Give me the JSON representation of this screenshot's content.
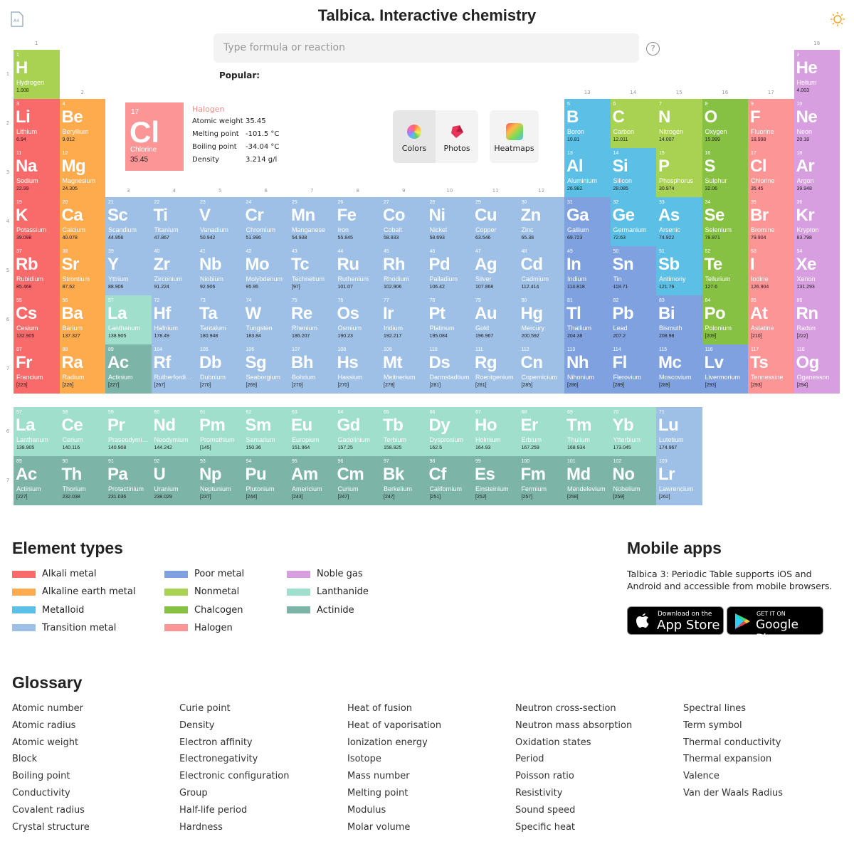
{
  "header": {
    "doc_icon": "A4",
    "title": "Talbica. Interactive chemistry",
    "search_placeholder": "Type formula or reaction",
    "help": "?",
    "popular": "Popular:"
  },
  "groups": [
    1,
    2,
    3,
    4,
    5,
    6,
    7,
    8,
    9,
    10,
    11,
    12,
    13,
    14,
    15,
    16,
    17,
    18
  ],
  "periods": [
    1,
    2,
    3,
    4,
    5,
    6,
    7
  ],
  "types": [
    {
      "name": "Alkali metal",
      "color": "#f96b6b"
    },
    {
      "name": "Alkaline earth metal",
      "color": "#fdab4c"
    },
    {
      "name": "Metalloid",
      "color": "#5cbfe6"
    },
    {
      "name": "Transition metal",
      "color": "#9ec0e6"
    },
    {
      "name": "Poor metal",
      "color": "#7fa1e0"
    },
    {
      "name": "Nonmetal",
      "color": "#a9d152"
    },
    {
      "name": "Chalcogen",
      "color": "#86c143"
    },
    {
      "name": "Halogen",
      "color": "#fc9696"
    },
    {
      "name": "Noble gas",
      "color": "#d89fe0"
    },
    {
      "name": "Lanthanide",
      "color": "#9fdfcb"
    },
    {
      "name": "Actinide",
      "color": "#7db4a8"
    }
  ],
  "elements": [
    {
      "n": 1,
      "s": "H",
      "name": "Hydrogen",
      "w": "1.008",
      "t": "Nonmetal"
    },
    {
      "n": 2,
      "s": "He",
      "name": "Helium",
      "w": "4.003",
      "t": "Noble gas"
    },
    {
      "n": 3,
      "s": "Li",
      "name": "Lithium",
      "w": "6.94",
      "t": "Alkali metal"
    },
    {
      "n": 4,
      "s": "Be",
      "name": "Beryllium",
      "w": "9.012",
      "t": "Alkaline earth metal"
    },
    {
      "n": 5,
      "s": "B",
      "name": "Boron",
      "w": "10.81",
      "t": "Metalloid"
    },
    {
      "n": 6,
      "s": "C",
      "name": "Carbon",
      "w": "12.011",
      "t": "Nonmetal"
    },
    {
      "n": 7,
      "s": "N",
      "name": "Nitrogen",
      "w": "14.007",
      "t": "Nonmetal"
    },
    {
      "n": 8,
      "s": "O",
      "name": "Oxygen",
      "w": "15.999",
      "t": "Chalcogen"
    },
    {
      "n": 9,
      "s": "F",
      "name": "Fluorine",
      "w": "18.998",
      "t": "Halogen"
    },
    {
      "n": 10,
      "s": "Ne",
      "name": "Neon",
      "w": "20.18",
      "t": "Noble gas"
    },
    {
      "n": 11,
      "s": "Na",
      "name": "Sodium",
      "w": "22.99",
      "t": "Alkali metal"
    },
    {
      "n": 12,
      "s": "Mg",
      "name": "Magnesium",
      "w": "24.305",
      "t": "Alkaline earth metal"
    },
    {
      "n": 13,
      "s": "Al",
      "name": "Aluminium",
      "w": "26.982",
      "t": "Metalloid"
    },
    {
      "n": 14,
      "s": "Si",
      "name": "Silicon",
      "w": "28.085",
      "t": "Metalloid"
    },
    {
      "n": 15,
      "s": "P",
      "name": "Phosphorus",
      "w": "30.974",
      "t": "Nonmetal"
    },
    {
      "n": 16,
      "s": "S",
      "name": "Sulphur",
      "w": "32.06",
      "t": "Chalcogen"
    },
    {
      "n": 17,
      "s": "Cl",
      "name": "Chlorine",
      "w": "35.45",
      "t": "Halogen"
    },
    {
      "n": 18,
      "s": "Ar",
      "name": "Argon",
      "w": "39.948",
      "t": "Noble gas"
    },
    {
      "n": 19,
      "s": "K",
      "name": "Potassium",
      "w": "39.098",
      "t": "Alkali metal"
    },
    {
      "n": 20,
      "s": "Ca",
      "name": "Calcium",
      "w": "40.078",
      "t": "Alkaline earth metal"
    },
    {
      "n": 21,
      "s": "Sc",
      "name": "Scandium",
      "w": "44.956",
      "t": "Transition metal"
    },
    {
      "n": 22,
      "s": "Ti",
      "name": "Titanium",
      "w": "47.867",
      "t": "Transition metal"
    },
    {
      "n": 23,
      "s": "V",
      "name": "Vanadium",
      "w": "50.942",
      "t": "Transition metal"
    },
    {
      "n": 24,
      "s": "Cr",
      "name": "Chromium",
      "w": "51.996",
      "t": "Transition metal"
    },
    {
      "n": 25,
      "s": "Mn",
      "name": "Manganese",
      "w": "54.938",
      "t": "Transition metal"
    },
    {
      "n": 26,
      "s": "Fe",
      "name": "Iron",
      "w": "55.845",
      "t": "Transition metal"
    },
    {
      "n": 27,
      "s": "Co",
      "name": "Cobalt",
      "w": "58.933",
      "t": "Transition metal"
    },
    {
      "n": 28,
      "s": "Ni",
      "name": "Nickel",
      "w": "58.693",
      "t": "Transition metal"
    },
    {
      "n": 29,
      "s": "Cu",
      "name": "Copper",
      "w": "63.546",
      "t": "Transition metal"
    },
    {
      "n": 30,
      "s": "Zn",
      "name": "Zinc",
      "w": "65.38",
      "t": "Transition metal"
    },
    {
      "n": 31,
      "s": "Ga",
      "name": "Gallium",
      "w": "69.723",
      "t": "Poor metal"
    },
    {
      "n": 32,
      "s": "Ge",
      "name": "Germanium",
      "w": "72.63",
      "t": "Metalloid"
    },
    {
      "n": 33,
      "s": "As",
      "name": "Arsenic",
      "w": "74.922",
      "t": "Metalloid"
    },
    {
      "n": 34,
      "s": "Se",
      "name": "Selenium",
      "w": "78.971",
      "t": "Chalcogen"
    },
    {
      "n": 35,
      "s": "Br",
      "name": "Bromine",
      "w": "79.904",
      "t": "Halogen"
    },
    {
      "n": 36,
      "s": "Kr",
      "name": "Krypton",
      "w": "83.798",
      "t": "Noble gas"
    },
    {
      "n": 37,
      "s": "Rb",
      "name": "Rubidium",
      "w": "85.468",
      "t": "Alkali metal"
    },
    {
      "n": 38,
      "s": "Sr",
      "name": "Strontium",
      "w": "87.62",
      "t": "Alkaline earth metal"
    },
    {
      "n": 39,
      "s": "Y",
      "name": "Yttrium",
      "w": "88.906",
      "t": "Transition metal"
    },
    {
      "n": 40,
      "s": "Zr",
      "name": "Zirconium",
      "w": "91.224",
      "t": "Transition metal"
    },
    {
      "n": 41,
      "s": "Nb",
      "name": "Niobium",
      "w": "92.906",
      "t": "Transition metal"
    },
    {
      "n": 42,
      "s": "Mo",
      "name": "Molybdenum",
      "w": "95.95",
      "t": "Transition metal"
    },
    {
      "n": 43,
      "s": "Tc",
      "name": "Technetium",
      "w": "[97]",
      "t": "Transition metal"
    },
    {
      "n": 44,
      "s": "Ru",
      "name": "Ruthenium",
      "w": "101.07",
      "t": "Transition metal"
    },
    {
      "n": 45,
      "s": "Rh",
      "name": "Rhodium",
      "w": "102.906",
      "t": "Transition metal"
    },
    {
      "n": 46,
      "s": "Pd",
      "name": "Palladium",
      "w": "106.42",
      "t": "Transition metal"
    },
    {
      "n": 47,
      "s": "Ag",
      "name": "Silver",
      "w": "107.868",
      "t": "Transition metal"
    },
    {
      "n": 48,
      "s": "Cd",
      "name": "Cadmium",
      "w": "112.414",
      "t": "Transition metal"
    },
    {
      "n": 49,
      "s": "In",
      "name": "Indium",
      "w": "114.818",
      "t": "Poor metal"
    },
    {
      "n": 50,
      "s": "Sn",
      "name": "Tin",
      "w": "118.71",
      "t": "Poor metal"
    },
    {
      "n": 51,
      "s": "Sb",
      "name": "Antimony",
      "w": "121.76",
      "t": "Metalloid"
    },
    {
      "n": 52,
      "s": "Te",
      "name": "Tellurium",
      "w": "127.6",
      "t": "Chalcogen"
    },
    {
      "n": 53,
      "s": "I",
      "name": "Iodine",
      "w": "126.904",
      "t": "Halogen"
    },
    {
      "n": 54,
      "s": "Xe",
      "name": "Xenon",
      "w": "131.293",
      "t": "Noble gas"
    },
    {
      "n": 55,
      "s": "Cs",
      "name": "Cesium",
      "w": "132.905",
      "t": "Alkali metal"
    },
    {
      "n": 56,
      "s": "Ba",
      "name": "Barium",
      "w": "137.327",
      "t": "Alkaline earth metal"
    },
    {
      "n": 57,
      "s": "La",
      "name": "Lanthanum",
      "w": "138.905",
      "t": "Lanthanide"
    },
    {
      "n": 58,
      "s": "Ce",
      "name": "Cerium",
      "w": "140.116",
      "t": "Lanthanide"
    },
    {
      "n": 59,
      "s": "Pr",
      "name": "Praseodymium",
      "w": "140.908",
      "t": "Lanthanide"
    },
    {
      "n": 60,
      "s": "Nd",
      "name": "Neodymium",
      "w": "144.242",
      "t": "Lanthanide"
    },
    {
      "n": 61,
      "s": "Pm",
      "name": "Promethium",
      "w": "[145]",
      "t": "Lanthanide"
    },
    {
      "n": 62,
      "s": "Sm",
      "name": "Samarium",
      "w": "150.36",
      "t": "Lanthanide"
    },
    {
      "n": 63,
      "s": "Eu",
      "name": "Europium",
      "w": "151.964",
      "t": "Lanthanide"
    },
    {
      "n": 64,
      "s": "Gd",
      "name": "Gadolinium",
      "w": "157.25",
      "t": "Lanthanide"
    },
    {
      "n": 65,
      "s": "Tb",
      "name": "Terbium",
      "w": "158.925",
      "t": "Lanthanide"
    },
    {
      "n": 66,
      "s": "Dy",
      "name": "Dysprosium",
      "w": "162.5",
      "t": "Lanthanide"
    },
    {
      "n": 67,
      "s": "Ho",
      "name": "Holmium",
      "w": "164.93",
      "t": "Lanthanide"
    },
    {
      "n": 68,
      "s": "Er",
      "name": "Erbium",
      "w": "167.259",
      "t": "Lanthanide"
    },
    {
      "n": 69,
      "s": "Tm",
      "name": "Thulium",
      "w": "168.934",
      "t": "Lanthanide"
    },
    {
      "n": 70,
      "s": "Yb",
      "name": "Ytterbium",
      "w": "173.045",
      "t": "Lanthanide"
    },
    {
      "n": 71,
      "s": "Lu",
      "name": "Lutetium",
      "w": "174.967",
      "t": "Transition metal"
    },
    {
      "n": 72,
      "s": "Hf",
      "name": "Hafnium",
      "w": "178.49",
      "t": "Transition metal"
    },
    {
      "n": 73,
      "s": "Ta",
      "name": "Tantalum",
      "w": "180.948",
      "t": "Transition metal"
    },
    {
      "n": 74,
      "s": "W",
      "name": "Tungsten",
      "w": "183.84",
      "t": "Transition metal"
    },
    {
      "n": 75,
      "s": "Re",
      "name": "Rhenium",
      "w": "186.207",
      "t": "Transition metal"
    },
    {
      "n": 76,
      "s": "Os",
      "name": "Osmium",
      "w": "190.23",
      "t": "Transition metal"
    },
    {
      "n": 77,
      "s": "Ir",
      "name": "Iridium",
      "w": "192.217",
      "t": "Transition metal"
    },
    {
      "n": 78,
      "s": "Pt",
      "name": "Platinum",
      "w": "195.084",
      "t": "Transition metal"
    },
    {
      "n": 79,
      "s": "Au",
      "name": "Gold",
      "w": "196.967",
      "t": "Transition metal"
    },
    {
      "n": 80,
      "s": "Hg",
      "name": "Mercury",
      "w": "200.592",
      "t": "Transition metal"
    },
    {
      "n": 81,
      "s": "Tl",
      "name": "Thallium",
      "w": "204.38",
      "t": "Poor metal"
    },
    {
      "n": 82,
      "s": "Pb",
      "name": "Lead",
      "w": "207.2",
      "t": "Poor metal"
    },
    {
      "n": 83,
      "s": "Bi",
      "name": "Bismuth",
      "w": "208.98",
      "t": "Poor metal"
    },
    {
      "n": 84,
      "s": "Po",
      "name": "Polonium",
      "w": "[209]",
      "t": "Chalcogen"
    },
    {
      "n": 85,
      "s": "At",
      "name": "Astatine",
      "w": "[210]",
      "t": "Halogen"
    },
    {
      "n": 86,
      "s": "Rn",
      "name": "Radon",
      "w": "[222]",
      "t": "Noble gas"
    },
    {
      "n": 87,
      "s": "Fr",
      "name": "Francium",
      "w": "[223]",
      "t": "Alkali metal"
    },
    {
      "n": 88,
      "s": "Ra",
      "name": "Radium",
      "w": "[226]",
      "t": "Alkaline earth metal"
    },
    {
      "n": 89,
      "s": "Ac",
      "name": "Actinium",
      "w": "[227]",
      "t": "Actinide"
    },
    {
      "n": 90,
      "s": "Th",
      "name": "Thorium",
      "w": "232.038",
      "t": "Actinide"
    },
    {
      "n": 91,
      "s": "Pa",
      "name": "Protactinium",
      "w": "231.036",
      "t": "Actinide"
    },
    {
      "n": 92,
      "s": "U",
      "name": "Uranium",
      "w": "238.029",
      "t": "Actinide"
    },
    {
      "n": 93,
      "s": "Np",
      "name": "Neptunium",
      "w": "[237]",
      "t": "Actinide"
    },
    {
      "n": 94,
      "s": "Pu",
      "name": "Plutonium",
      "w": "[244]",
      "t": "Actinide"
    },
    {
      "n": 95,
      "s": "Am",
      "name": "Americium",
      "w": "[243]",
      "t": "Actinide"
    },
    {
      "n": 96,
      "s": "Cm",
      "name": "Curium",
      "w": "[247]",
      "t": "Actinide"
    },
    {
      "n": 97,
      "s": "Bk",
      "name": "Berkelium",
      "w": "[247]",
      "t": "Actinide"
    },
    {
      "n": 98,
      "s": "Cf",
      "name": "Californium",
      "w": "[251]",
      "t": "Actinide"
    },
    {
      "n": 99,
      "s": "Es",
      "name": "Einsteinium",
      "w": "[252]",
      "t": "Actinide"
    },
    {
      "n": 100,
      "s": "Fm",
      "name": "Fermium",
      "w": "[257]",
      "t": "Actinide"
    },
    {
      "n": 101,
      "s": "Md",
      "name": "Mendelevium",
      "w": "[258]",
      "t": "Actinide"
    },
    {
      "n": 102,
      "s": "No",
      "name": "Nobelium",
      "w": "[259]",
      "t": "Actinide"
    },
    {
      "n": 103,
      "s": "Lr",
      "name": "Lawrencium",
      "w": "[262]",
      "t": "Transition metal"
    },
    {
      "n": 104,
      "s": "Rf",
      "name": "Rutherfordium",
      "w": "[267]",
      "t": "Transition metal"
    },
    {
      "n": 105,
      "s": "Db",
      "name": "Dubnium",
      "w": "[270]",
      "t": "Transition metal"
    },
    {
      "n": 106,
      "s": "Sg",
      "name": "Seaborgium",
      "w": "[269]",
      "t": "Transition metal"
    },
    {
      "n": 107,
      "s": "Bh",
      "name": "Bohrium",
      "w": "[270]",
      "t": "Transition metal"
    },
    {
      "n": 108,
      "s": "Hs",
      "name": "Hassium",
      "w": "[270]",
      "t": "Transition metal"
    },
    {
      "n": 109,
      "s": "Mt",
      "name": "Meitnerium",
      "w": "[278]",
      "t": "Transition metal"
    },
    {
      "n": 110,
      "s": "Ds",
      "name": "Darmstadtium",
      "w": "[281]",
      "t": "Transition metal"
    },
    {
      "n": 111,
      "s": "Rg",
      "name": "Roentgenium",
      "w": "[281]",
      "t": "Transition metal"
    },
    {
      "n": 112,
      "s": "Cn",
      "name": "Copernicium",
      "w": "[285]",
      "t": "Transition metal"
    },
    {
      "n": 113,
      "s": "Nh",
      "name": "Nihonium",
      "w": "[286]",
      "t": "Poor metal"
    },
    {
      "n": 114,
      "s": "Fl",
      "name": "Flerovium",
      "w": "[289]",
      "t": "Poor metal"
    },
    {
      "n": 115,
      "s": "Mc",
      "name": "Moscovium",
      "w": "[289]",
      "t": "Poor metal"
    },
    {
      "n": 116,
      "s": "Lv",
      "name": "Livermorium",
      "w": "[293]",
      "t": "Poor metal"
    },
    {
      "n": 117,
      "s": "Ts",
      "name": "Tennessine",
      "w": "[293]",
      "t": "Halogen"
    },
    {
      "n": 118,
      "s": "Og",
      "name": "Oganesson",
      "w": "[294]",
      "t": "Noble gas"
    }
  ],
  "detail": {
    "number": 17,
    "symbol": "Cl",
    "name": "Chlorine",
    "weight": "35.45",
    "type": "Halogen",
    "props": [
      {
        "label": "Atomic weight",
        "value": "35.45"
      },
      {
        "label": "Melting point",
        "value": "-101.5 °C"
      },
      {
        "label": "Boiling point",
        "value": "-34.04 °C"
      },
      {
        "label": "Density",
        "value": "3.214 g/l"
      }
    ]
  },
  "buttons": {
    "colors": "Colors",
    "photos": "Photos",
    "heatmaps": "Heatmaps"
  },
  "legend_title": "Element types",
  "mobile": {
    "title": "Mobile apps",
    "text": "Talbica 3: Periodic Table supports iOS and Android and accessible from mobile browsers.",
    "appstore_small": "Download on the",
    "appstore_big": "App Store",
    "play_small": "GET IT ON",
    "play_big": "Google Play"
  },
  "glossary": {
    "title": "Glossary",
    "items": [
      "Atomic number",
      "Atomic radius",
      "Atomic weight",
      "Block",
      "Boiling point",
      "Conductivity",
      "Covalent radius",
      "Crystal structure",
      "Curie point",
      "Density",
      "Electron affinity",
      "Electronegativity",
      "Electronic configuration",
      "Group",
      "Half-life period",
      "Hardness",
      "Heat of fusion",
      "Heat of vaporisation",
      "Ionization energy",
      "Isotope",
      "Mass number",
      "Melting point",
      "Modulus",
      "Molar volume",
      "Neutron cross-section",
      "Neutron mass absorption",
      "Oxidation states",
      "Period",
      "Poisson ratio",
      "Resistivity",
      "Sound speed",
      "Specific heat",
      "Spectral lines",
      "Term symbol",
      "Thermal conductivity",
      "Thermal expansion",
      "Valence",
      "Van der Waals Radius"
    ]
  }
}
